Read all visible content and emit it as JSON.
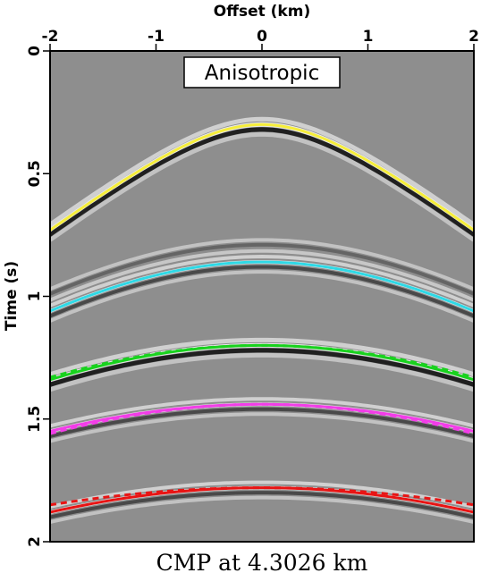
{
  "figure": {
    "label": "Anisotropic",
    "caption": "CMP at 4.3026 km",
    "xlabel": "Offset (km)",
    "ylabel": "Time (s)"
  },
  "chart_data": {
    "type": "line",
    "title": "",
    "xlabel": "Offset (km)",
    "ylabel": "Time (s)",
    "xlim": [
      -2,
      2
    ],
    "ylim": [
      0,
      2
    ],
    "x_axis_position": "top",
    "y_inverted": true,
    "x_ticks": [
      "-2",
      "-1",
      "0",
      "1",
      "2"
    ],
    "y_ticks": [
      "0",
      "0.5",
      "1",
      "1.5",
      "2"
    ],
    "background_colors": {
      "gray": "#8e8e8e",
      "light": "#ececec",
      "dark": "#1a1a1a"
    },
    "series": [
      {
        "color": "#f6ee3a",
        "t0": 0.3,
        "t_far": 0.73,
        "style": "solid"
      },
      {
        "color": "#2ed9e6",
        "t0": 0.86,
        "t_far": 1.06,
        "style": "solid"
      },
      {
        "color": "#19d21e",
        "t0": 1.2,
        "t_far": 1.34,
        "style": "solid"
      },
      {
        "color": "#19d21e",
        "t0": 1.2,
        "t_far": 1.33,
        "style": "dashed"
      },
      {
        "color": "#f23de8",
        "t0": 1.44,
        "t_far": 1.55,
        "style": "solid"
      },
      {
        "color": "#f23de8",
        "t0": 1.44,
        "t_far": 1.56,
        "style": "dashed"
      },
      {
        "color": "#e81414",
        "t0": 1.78,
        "t_far": 1.88,
        "style": "solid"
      },
      {
        "color": "#e81414",
        "t0": 1.78,
        "t_far": 1.85,
        "style": "dashed"
      }
    ]
  }
}
